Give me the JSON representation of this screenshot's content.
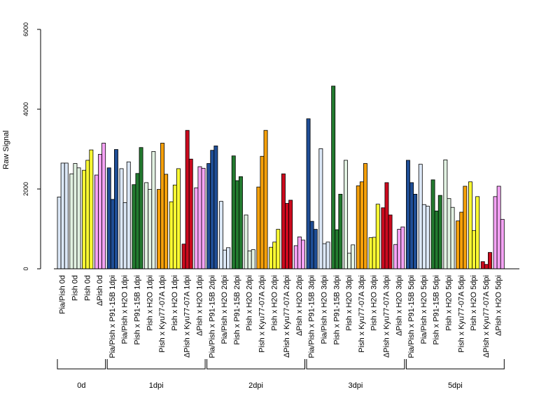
{
  "chart_data": {
    "type": "bar",
    "ylabel": "Raw Signal",
    "ylim": [
      0,
      6000
    ],
    "yticks": [
      0,
      2000,
      4000,
      6000
    ],
    "colors": {
      "Pia/Pish": "#dce8f7",
      "Pish": "#e2f2e2",
      "P91-15B": "#1f4e96",
      "H2O": "#eaf3e2",
      "Kyu77-07A": "#f5a00a",
      "yellow": "#ffff33",
      "red": "#cc0a1e",
      "violet": "#f5a3f5",
      "green": "#237a2f"
    },
    "categories": [
      {
        "label": "Pia/Pish 0d",
        "group": "0d",
        "color": "#dce8f7",
        "values": [
          1800,
          2650,
          2650
        ]
      },
      {
        "label": "Pish 0d",
        "group": "0d",
        "color": "#e2f2e2",
        "values": [
          2380,
          2640,
          2530
        ]
      },
      {
        "label": "Pish 0d",
        "group": "0d",
        "color": "#ffff33",
        "values": [
          2470,
          2720,
          2980
        ]
      },
      {
        "label": "ΔPish 0d",
        "group": "0d",
        "color": "#f5a3f5",
        "values": [
          2350,
          2870,
          3150
        ]
      },
      {
        "label": "Pia/Pish x P91-15B 1dpi",
        "group": "1dpi",
        "color": "#1f4e96",
        "values": [
          2530,
          1740,
          2990
        ]
      },
      {
        "label": "Pia/Pish x H2O 1dpi",
        "group": "1dpi",
        "color": "#dce8f7",
        "values": [
          2510,
          1660,
          2680
        ]
      },
      {
        "label": "Pish x P91-15B 1dpi",
        "group": "1dpi",
        "color": "#237a2f",
        "values": [
          2110,
          2390,
          3040
        ]
      },
      {
        "label": "Pish x H2O 1dpi",
        "group": "1dpi",
        "color": "#e2f2e2",
        "values": [
          2160,
          1990,
          2940
        ]
      },
      {
        "label": "Pish x Kyu77-07A 1dpi",
        "group": "1dpi",
        "color": "#f5a00a",
        "values": [
          1990,
          3150,
          2370
        ]
      },
      {
        "label": "Pish x H2O 1dpi",
        "group": "1dpi",
        "color": "#ffff33",
        "values": [
          1680,
          2100,
          2510
        ]
      },
      {
        "label": "ΔPish x Kyu77-07A 1dpi",
        "group": "1dpi",
        "color": "#cc0a1e",
        "values": [
          620,
          3470,
          2750
        ]
      },
      {
        "label": "ΔPish x H2O 1dpi",
        "group": "1dpi",
        "color": "#f5a3f5",
        "values": [
          2030,
          2560,
          2520
        ]
      },
      {
        "label": "Pia/Pish x P91-15B 2dpi",
        "group": "2dpi",
        "color": "#1f4e96",
        "values": [
          2640,
          2970,
          3080
        ]
      },
      {
        "label": "Pia/Pish x H2O 2dpi",
        "group": "2dpi",
        "color": "#dce8f7",
        "values": [
          1690,
          470,
          530
        ]
      },
      {
        "label": "Pish x P91-15B 2dpi",
        "group": "2dpi",
        "color": "#237a2f",
        "values": [
          2830,
          2210,
          2310
        ]
      },
      {
        "label": "Pish x H2O 2dpi",
        "group": "2dpi",
        "color": "#e2f2e2",
        "values": [
          1350,
          450,
          480
        ]
      },
      {
        "label": "Pish x Kyu77-07A 2dpi",
        "group": "2dpi",
        "color": "#f5a00a",
        "values": [
          2050,
          2820,
          3470
        ]
      },
      {
        "label": "Pish x H2O 2dpi",
        "group": "2dpi",
        "color": "#ffff33",
        "values": [
          540,
          670,
          990
        ]
      },
      {
        "label": "ΔPish x Kyu77-07A 2dpi",
        "group": "2dpi",
        "color": "#cc0a1e",
        "values": [
          2380,
          1640,
          1720
        ]
      },
      {
        "label": "ΔPish x H2O 2dpi",
        "group": "2dpi",
        "color": "#f5a3f5",
        "values": [
          580,
          800,
          720
        ]
      },
      {
        "label": "Pia/Pish x P91-15B 3dpi",
        "group": "3dpi",
        "color": "#1f4e96",
        "values": [
          3760,
          1190,
          990
        ]
      },
      {
        "label": "Pia/Pish x H2O 3dpi",
        "group": "3dpi",
        "color": "#dce8f7",
        "values": [
          3010,
          630,
          670
        ]
      },
      {
        "label": "Pish x P91-15B 3dpi",
        "group": "3dpi",
        "color": "#237a2f",
        "values": [
          4580,
          980,
          1870
        ]
      },
      {
        "label": "Pish x H2O 3dpi",
        "group": "3dpi",
        "color": "#e2f2e2",
        "values": [
          2720,
          390,
          600
        ]
      },
      {
        "label": "Pish x Kyu77-07A 3dpi",
        "group": "3dpi",
        "color": "#f5a00a",
        "values": [
          2080,
          2180,
          2640
        ]
      },
      {
        "label": "Pish x H2O 3dpi",
        "group": "3dpi",
        "color": "#ffff33",
        "values": [
          780,
          790,
          1620
        ]
      },
      {
        "label": "ΔPish x Kyu77-07A 3dpi",
        "group": "3dpi",
        "color": "#cc0a1e",
        "values": [
          1530,
          2160,
          1350
        ]
      },
      {
        "label": "ΔPish x H2O 3dpi",
        "group": "3dpi",
        "color": "#f5a3f5",
        "values": [
          610,
          990,
          1050
        ]
      },
      {
        "label": "Pia/Pish x P91-15B 5dpi",
        "group": "5dpi",
        "color": "#1f4e96",
        "values": [
          2720,
          2160,
          1870
        ]
      },
      {
        "label": "Pia/Pish x H2O 5dpi",
        "group": "5dpi",
        "color": "#dce8f7",
        "values": [
          2620,
          1610,
          1570
        ]
      },
      {
        "label": "Pish x P91-15B 5dpi",
        "group": "5dpi",
        "color": "#237a2f",
        "values": [
          2230,
          1450,
          1840
        ]
      },
      {
        "label": "Pish x H2O 5dpi",
        "group": "5dpi",
        "color": "#e2f2e2",
        "values": [
          2730,
          1760,
          1540
        ]
      },
      {
        "label": "Pish x Kyu77-07A 5dpi",
        "group": "5dpi",
        "color": "#f5a00a",
        "values": [
          1200,
          1420,
          2070
        ]
      },
      {
        "label": "Pish x H2O 5dpi",
        "group": "5dpi",
        "color": "#ffff33",
        "values": [
          2180,
          960,
          1810
        ]
      },
      {
        "label": "ΔPish x Kyu77-07A 5dpi",
        "group": "5dpi",
        "color": "#cc0a1e",
        "values": [
          180,
          110,
          410
        ]
      },
      {
        "label": "ΔPish x H2O 5dpi",
        "group": "5dpi",
        "color": "#f5a3f5",
        "values": [
          1810,
          2070,
          1240
        ]
      }
    ],
    "groups": [
      "0d",
      "1dpi",
      "2dpi",
      "3dpi",
      "5dpi"
    ],
    "grid": false,
    "legend": "none"
  }
}
